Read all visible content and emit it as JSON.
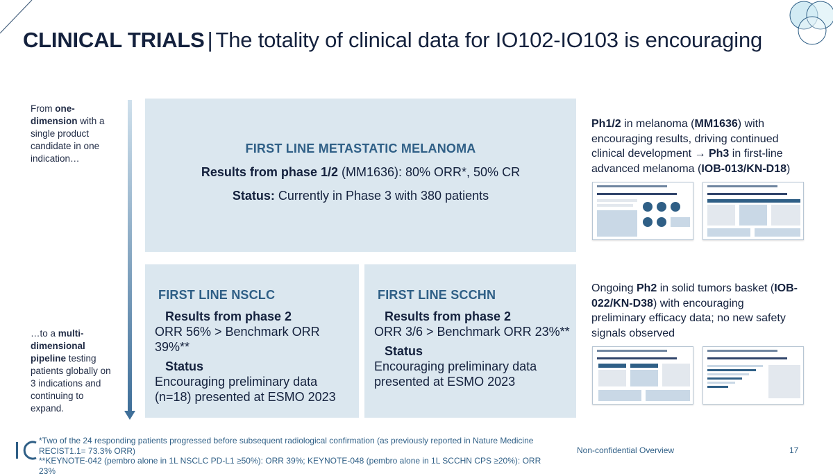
{
  "title": {
    "bold": "CLINICAL TRIALS",
    "separator": "|",
    "rest": "The totality of clinical data for IO102-IO103 is encouraging"
  },
  "left": {
    "top_parts": [
      "From ",
      "one-dimension",
      " with a single product candidate in one indication…"
    ],
    "bottom_parts": [
      "…to a ",
      "multi-dimensional pipeline",
      " testing patients globally on 3 indications and continuing to expand."
    ]
  },
  "melanoma": {
    "heading": "FIRST LINE METASTATIC MELANOMA",
    "results_label": "Results from phase 1/2",
    "results_text": " (MM1636): 80% ORR*, 50% CR",
    "status_label": "Status:",
    "status_text": " Currently in Phase 3 with 380 patients"
  },
  "nsclc": {
    "heading": "FIRST LINE NSCLC",
    "results_label": "Results from phase 2",
    "results_text": "ORR 56% > Benchmark ORR 39%**",
    "status_label": "Status",
    "status_text": "Encouraging preliminary data (n=18) presented at ESMO 2023"
  },
  "scchn": {
    "heading": "FIRST LINE SCCHN",
    "results_label": "Results from phase 2",
    "results_text": "ORR 3/6 > Benchmark ORR 23%**",
    "status_label": "Status",
    "status_text": "Encouraging preliminary data presented at ESMO 2023"
  },
  "right": {
    "top_parts": [
      "Ph1/2",
      " in melanoma (",
      "MM1636",
      ") with encouraging results, driving continued clinical development ",
      "→ Ph3",
      " in first-line advanced melanoma (",
      "IOB-013/KN-D18",
      ")"
    ],
    "bottom_parts": [
      "Ongoing ",
      "Ph2",
      " in solid tumors basket (",
      "IOB-022/KN-D38",
      ") with encouraging preliminary efficacy data; no new safety signals observed"
    ]
  },
  "footer": {
    "footnote1": "*Two of the 24 responding patients progressed before subsequent radiological confirmation (as previously reported in Nature Medicine RECIST1.1= 73.3% ORR)",
    "footnote2": "**KEYNOTE-042 (pembro alone in 1L NSCLC PD-L1 ≥50%): ORR 39%; KEYNOTE-048 (pembro alone in 1L SCCHN CPS ≥20%): ORR 23%",
    "label": "Non-confidential Overview",
    "page": "17"
  },
  "colors": {
    "accent": "#2f5f86",
    "panel": "#dbe7ef",
    "title": "#14213d"
  },
  "icons": [
    "corner-line-decoration",
    "overlapping-circles-logo",
    "down-arrow",
    "io-logo-icon"
  ]
}
